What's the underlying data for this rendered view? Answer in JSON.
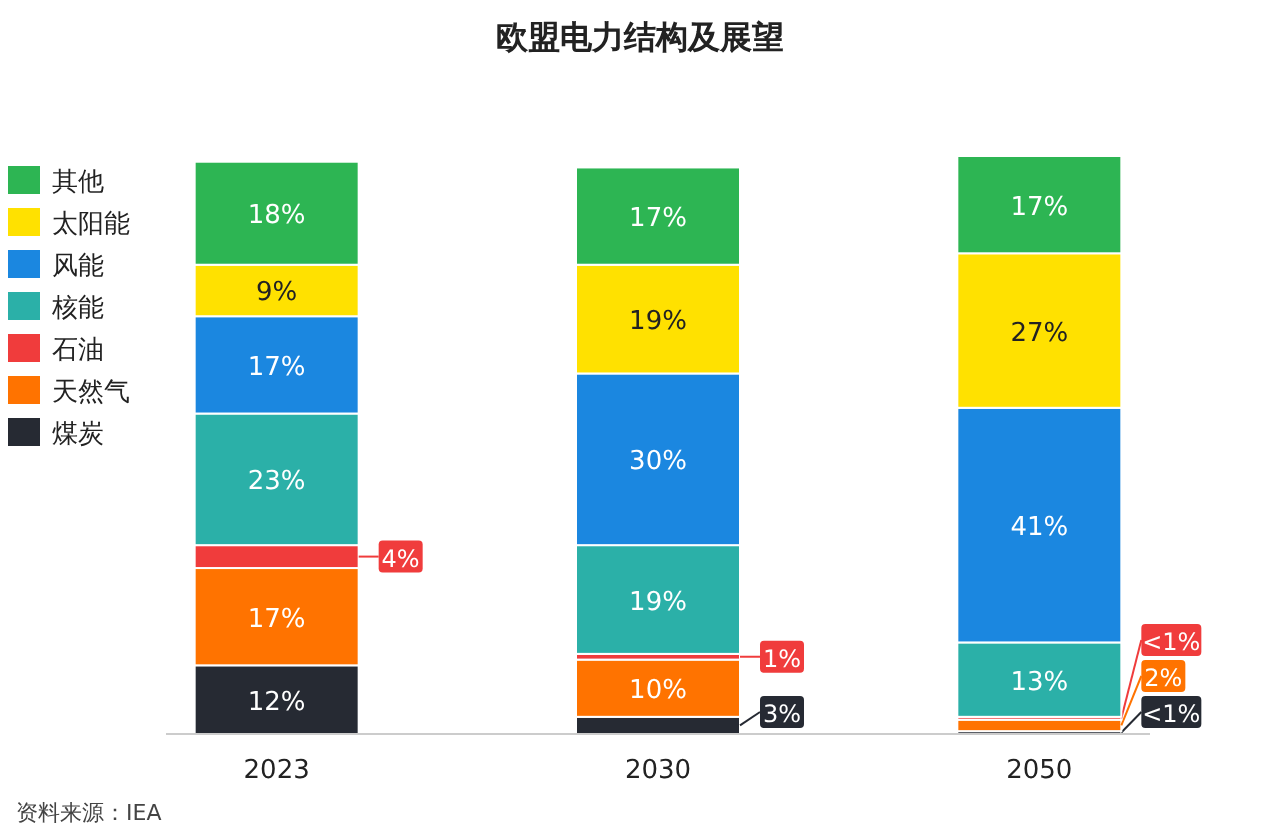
{
  "chart_data": {
    "type": "bar",
    "title": "欧盟电力结构及展望",
    "categories": [
      "2023",
      "2030",
      "2050"
    ],
    "stacked": true,
    "legend": "left",
    "series": [
      {
        "name": "煤炭",
        "color": "#262a33",
        "values": [
          12,
          3,
          0.5
        ],
        "value_labels": [
          "12%",
          "3%",
          "<1%"
        ]
      },
      {
        "name": "天然气",
        "color": "#ff7300",
        "values": [
          17,
          10,
          2
        ],
        "value_labels": [
          "17%",
          "10%",
          "2%"
        ]
      },
      {
        "name": "石油",
        "color": "#f03c3c",
        "values": [
          4,
          1,
          0.5
        ],
        "value_labels": [
          "4%",
          "1%",
          "<1%"
        ]
      },
      {
        "name": "核能",
        "color": "#2bb0a8",
        "values": [
          23,
          19,
          13
        ],
        "value_labels": [
          "23%",
          "19%",
          "13%"
        ]
      },
      {
        "name": "风能",
        "color": "#1b87e0",
        "values": [
          17,
          30,
          41
        ],
        "value_labels": [
          "17%",
          "30%",
          "41%"
        ]
      },
      {
        "name": "太阳能",
        "color": "#ffe100",
        "values": [
          9,
          19,
          27
        ],
        "value_labels": [
          "9%",
          "19%",
          "27%"
        ]
      },
      {
        "name": "其他",
        "color": "#2db553",
        "values": [
          18,
          17,
          17
        ],
        "value_labels": [
          "18%",
          "17%",
          "17%"
        ]
      }
    ],
    "annotations": [
      "资料来源：IEA"
    ]
  }
}
